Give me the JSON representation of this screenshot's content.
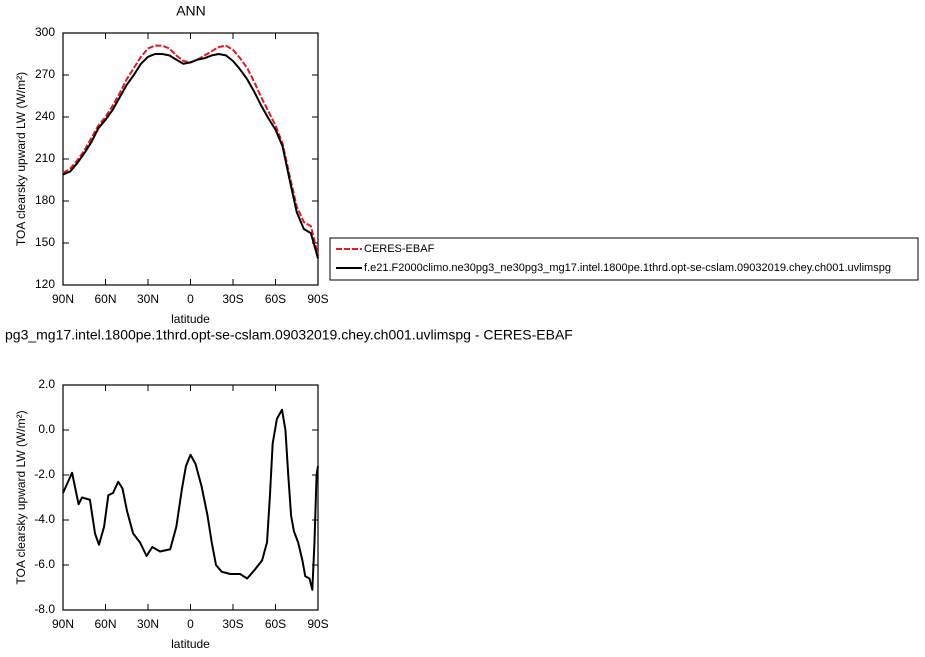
{
  "chart_data": [
    {
      "type": "line",
      "title": "ANN",
      "xlabel": "latitude",
      "ylabel": "TOA clearsky upward LW (W/m²)",
      "x": [
        90,
        85,
        80,
        75,
        70,
        65,
        60,
        55,
        50,
        45,
        40,
        35,
        30,
        25,
        20,
        15,
        10,
        5,
        0,
        -5,
        -10,
        -15,
        -20,
        -25,
        -30,
        -35,
        -40,
        -45,
        -50,
        -55,
        -60,
        -65,
        -70,
        -75,
        -80,
        -85,
        -90
      ],
      "series": [
        {
          "name": "CERES-EBAF",
          "color": "#e41a1c",
          "dashed": true,
          "values": [
            200,
            203,
            209,
            216,
            225,
            234,
            240,
            248,
            257,
            267,
            275,
            283,
            289,
            291,
            291,
            289,
            284,
            280,
            279,
            281,
            284,
            287,
            290,
            291,
            288,
            282,
            275,
            265,
            254,
            244,
            234,
            221,
            198,
            176,
            165,
            162,
            141
          ]
        },
        {
          "name": "f.e21.F2000climo.ne30pg3_ne30pg3_mg17.intel.1800pe.1thrd.opt-se-cslam.09032019.chey.ch001.uvlimspg",
          "color": "#000000",
          "dashed": false,
          "values": [
            199,
            201,
            207,
            214,
            222,
            232,
            238,
            245,
            254,
            263,
            270,
            278,
            283,
            285,
            285,
            284,
            281,
            278,
            279,
            281,
            282,
            284,
            285,
            284,
            280,
            274,
            267,
            258,
            248,
            239,
            231,
            219,
            195,
            172,
            160,
            157,
            139
          ]
        }
      ],
      "xlim": [
        90,
        -90
      ],
      "xticks": [
        {
          "value": 90,
          "label": "90N"
        },
        {
          "value": 60,
          "label": "60N"
        },
        {
          "value": 30,
          "label": "30N"
        },
        0,
        {
          "value": -30,
          "label": "30S"
        },
        {
          "value": -60,
          "label": "60S"
        },
        {
          "value": -90,
          "label": "90S"
        }
      ],
      "ylim": [
        120,
        300
      ],
      "yticks": [
        120,
        150,
        180,
        210,
        240,
        270,
        300
      ],
      "legend": "right"
    },
    {
      "type": "line",
      "title": "pg3_mg17.intel.1800pe.1thrd.opt-se-cslam.09032019.chey.ch001.uvlimspg - CERES-EBAF",
      "xlabel": "latitude",
      "ylabel": "TOA clearsky upward LW (W/m²)",
      "x": [
        90,
        83.6,
        79,
        76.6,
        71,
        67.4,
        64.6,
        61,
        58,
        54.7,
        51,
        48,
        44.8,
        40.5,
        35.6,
        31,
        27,
        21.5,
        14.3,
        10,
        6,
        3.2,
        0,
        -3.5,
        -7.8,
        -12,
        -15,
        -18,
        -22,
        -28,
        -35,
        -40,
        -45.5,
        -50.5,
        -54,
        -56,
        -58,
        -61,
        -64.6,
        -67,
        -69,
        -71,
        -73,
        -76,
        -79,
        -81,
        -84,
        -86,
        -87.5,
        -89,
        -90
      ],
      "series": [
        {
          "color": "#000000",
          "dashed": false,
          "values": [
            -2.8,
            -1.9,
            -3.3,
            -3.0,
            -3.1,
            -4.6,
            -5.1,
            -4.3,
            -2.9,
            -2.8,
            -2.3,
            -2.6,
            -3.6,
            -4.6,
            -5.0,
            -5.6,
            -5.2,
            -5.4,
            -5.3,
            -4.3,
            -2.6,
            -1.6,
            -1.1,
            -1.5,
            -2.5,
            -3.8,
            -5.0,
            -6.0,
            -6.3,
            -6.4,
            -6.4,
            -6.6,
            -6.2,
            -5.8,
            -5.0,
            -3.0,
            -0.6,
            0.5,
            0.9,
            0.0,
            -2.0,
            -3.8,
            -4.5,
            -5.0,
            -5.8,
            -6.5,
            -6.6,
            -7.1,
            -5.0,
            -2.0,
            -1.6
          ]
        }
      ],
      "xlim": [
        90,
        -90
      ],
      "xticks": [
        {
          "value": 90,
          "label": "90N"
        },
        {
          "value": 60,
          "label": "60N"
        },
        {
          "value": 30,
          "label": "30N"
        },
        0,
        {
          "value": -30,
          "label": "30S"
        },
        {
          "value": -60,
          "label": "60S"
        },
        {
          "value": -90,
          "label": "90S"
        }
      ],
      "ylim": [
        -8,
        2
      ],
      "yticks": [
        {
          "value": -8,
          "label": "-8.0"
        },
        {
          "value": -6,
          "label": "-6.0"
        },
        {
          "value": -4,
          "label": "-4.0"
        },
        {
          "value": -2,
          "label": "-2.0"
        },
        {
          "value": 0,
          "label": "0.0"
        },
        {
          "value": 2,
          "label": "2.0"
        }
      ]
    }
  ]
}
